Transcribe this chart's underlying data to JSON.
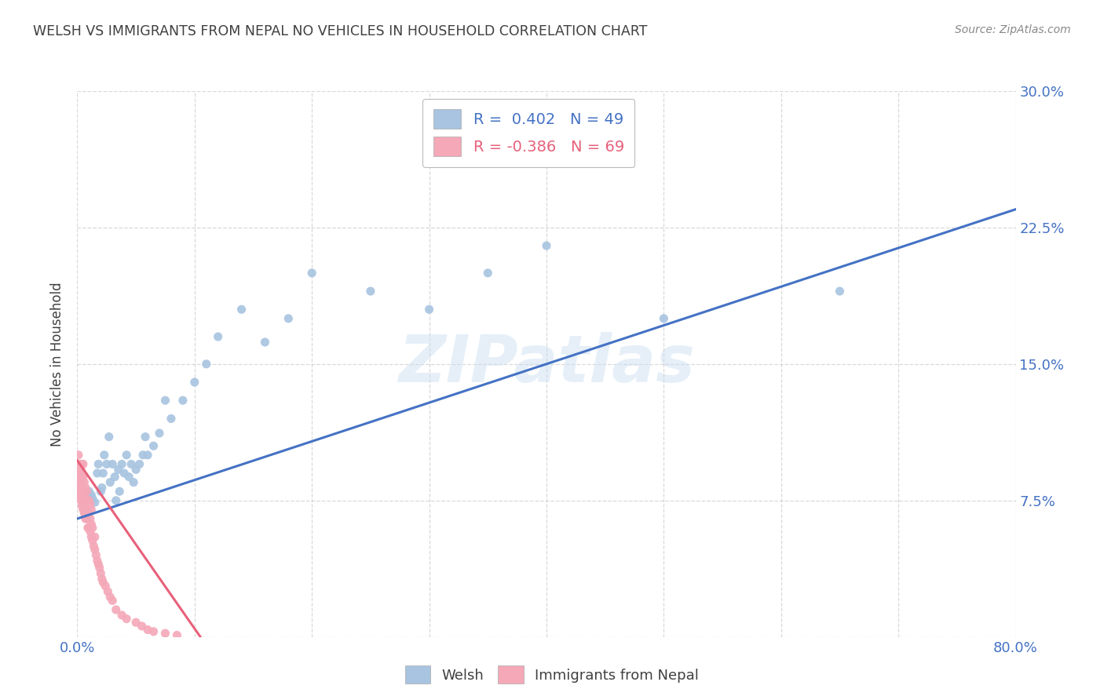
{
  "title": "WELSH VS IMMIGRANTS FROM NEPAL NO VEHICLES IN HOUSEHOLD CORRELATION CHART",
  "source": "Source: ZipAtlas.com",
  "ylabel": "No Vehicles in Household",
  "xlim": [
    0.0,
    0.8
  ],
  "ylim": [
    0.0,
    0.3
  ],
  "ytick_positions": [
    0.0,
    0.075,
    0.15,
    0.225,
    0.3
  ],
  "ytick_labels_left": [
    "",
    "",
    "",
    "",
    ""
  ],
  "ytick_labels_right": [
    "",
    "7.5%",
    "15.0%",
    "22.5%",
    "30.0%"
  ],
  "xtick_positions": [
    0.0,
    0.1,
    0.2,
    0.3,
    0.4,
    0.5,
    0.6,
    0.7,
    0.8
  ],
  "xtick_labels": [
    "0.0%",
    "",
    "",
    "",
    "",
    "",
    "",
    "",
    "80.0%"
  ],
  "watermark": "ZIPatlas",
  "legend_r_welsh": "R =  0.402",
  "legend_n_welsh": "N = 49",
  "legend_r_nepal": "R = -0.386",
  "legend_n_nepal": "N = 69",
  "welsh_color": "#a8c4e0",
  "nepal_color": "#f4a8b8",
  "welsh_line_color": "#4472c4",
  "nepal_line_color": "#e8607a",
  "title_color": "#404040",
  "axis_tick_color": "#4472c4",
  "welsh_scatter_x": [
    0.005,
    0.007,
    0.01,
    0.012,
    0.013,
    0.015,
    0.017,
    0.018,
    0.02,
    0.021,
    0.022,
    0.023,
    0.025,
    0.027,
    0.028,
    0.03,
    0.032,
    0.033,
    0.035,
    0.036,
    0.038,
    0.04,
    0.042,
    0.044,
    0.046,
    0.048,
    0.05,
    0.053,
    0.056,
    0.058,
    0.06,
    0.065,
    0.07,
    0.075,
    0.08,
    0.09,
    0.1,
    0.11,
    0.12,
    0.14,
    0.16,
    0.18,
    0.2,
    0.25,
    0.3,
    0.35,
    0.4,
    0.5,
    0.65
  ],
  "welsh_scatter_y": [
    0.073,
    0.068,
    0.08,
    0.078,
    0.076,
    0.074,
    0.09,
    0.095,
    0.08,
    0.082,
    0.09,
    0.1,
    0.095,
    0.11,
    0.085,
    0.095,
    0.088,
    0.075,
    0.092,
    0.08,
    0.095,
    0.09,
    0.1,
    0.088,
    0.095,
    0.085,
    0.092,
    0.095,
    0.1,
    0.11,
    0.1,
    0.105,
    0.112,
    0.13,
    0.12,
    0.13,
    0.14,
    0.15,
    0.165,
    0.18,
    0.162,
    0.175,
    0.2,
    0.19,
    0.18,
    0.2,
    0.215,
    0.175,
    0.19
  ],
  "nepal_scatter_x": [
    0.001,
    0.001,
    0.001,
    0.002,
    0.002,
    0.002,
    0.002,
    0.003,
    0.003,
    0.003,
    0.003,
    0.004,
    0.004,
    0.004,
    0.004,
    0.005,
    0.005,
    0.005,
    0.005,
    0.005,
    0.006,
    0.006,
    0.006,
    0.006,
    0.007,
    0.007,
    0.007,
    0.007,
    0.008,
    0.008,
    0.008,
    0.008,
    0.009,
    0.009,
    0.009,
    0.01,
    0.01,
    0.01,
    0.011,
    0.011,
    0.011,
    0.012,
    0.012,
    0.012,
    0.013,
    0.013,
    0.014,
    0.015,
    0.015,
    0.016,
    0.017,
    0.018,
    0.019,
    0.02,
    0.021,
    0.022,
    0.024,
    0.026,
    0.028,
    0.03,
    0.033,
    0.038,
    0.042,
    0.05,
    0.055,
    0.06,
    0.065,
    0.075,
    0.085
  ],
  "nepal_scatter_y": [
    0.09,
    0.08,
    0.1,
    0.078,
    0.09,
    0.095,
    0.085,
    0.075,
    0.082,
    0.088,
    0.092,
    0.072,
    0.078,
    0.085,
    0.095,
    0.07,
    0.075,
    0.08,
    0.088,
    0.095,
    0.068,
    0.072,
    0.078,
    0.085,
    0.065,
    0.07,
    0.075,
    0.082,
    0.065,
    0.068,
    0.075,
    0.08,
    0.06,
    0.068,
    0.075,
    0.06,
    0.068,
    0.075,
    0.058,
    0.065,
    0.073,
    0.055,
    0.062,
    0.07,
    0.053,
    0.06,
    0.05,
    0.048,
    0.055,
    0.045,
    0.042,
    0.04,
    0.038,
    0.035,
    0.032,
    0.03,
    0.028,
    0.025,
    0.022,
    0.02,
    0.015,
    0.012,
    0.01,
    0.008,
    0.006,
    0.004,
    0.003,
    0.002,
    0.001
  ],
  "welsh_line_x": [
    0.0,
    0.8
  ],
  "welsh_line_y": [
    0.065,
    0.235
  ],
  "nepal_line_x": [
    0.0,
    0.105
  ],
  "nepal_line_y": [
    0.097,
    0.0
  ],
  "background_color": "#ffffff",
  "grid_color": "#d0d0d0"
}
